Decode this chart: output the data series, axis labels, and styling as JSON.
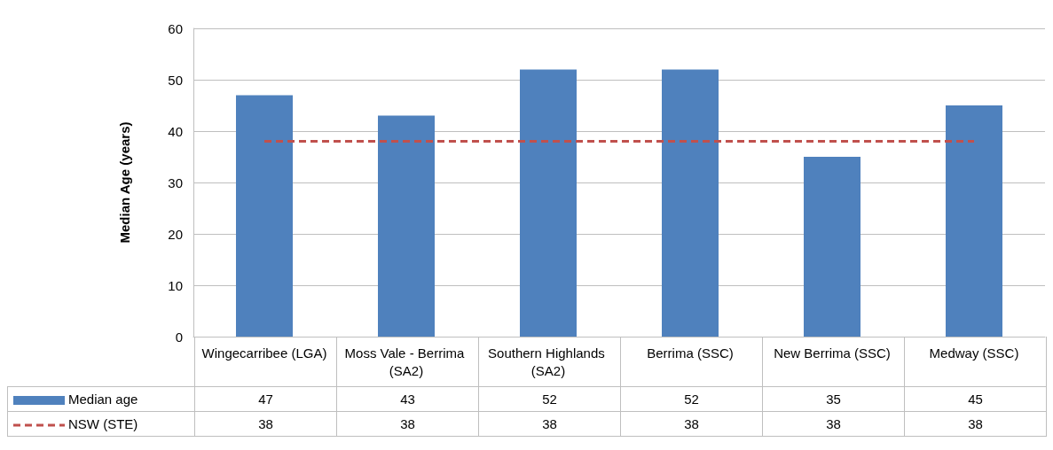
{
  "chart_data": {
    "type": "bar",
    "categories": [
      "Wingecarribee (LGA)",
      "Moss Vale - Berrima (SA2)",
      "Southern Highlands (SA2)",
      "Berrima (SSC)",
      "New Berrima (SSC)",
      "Medway (SSC)"
    ],
    "series": [
      {
        "name": "Median age",
        "color": "#4f81bd",
        "values": [
          47,
          43,
          52,
          52,
          35,
          45
        ]
      },
      {
        "name": "NSW (STE)",
        "type": "line",
        "color": "#c0504d",
        "line_style": "dashed",
        "marker": "none",
        "values": [
          38,
          38,
          38,
          38,
          38,
          38
        ]
      }
    ],
    "ylabel": "Median Age (years)",
    "ylim": [
      0,
      60
    ],
    "yticks": [
      0,
      10,
      20,
      30,
      40,
      50,
      60
    ],
    "grid": "y",
    "data_labels": true,
    "legend": "bottom"
  }
}
